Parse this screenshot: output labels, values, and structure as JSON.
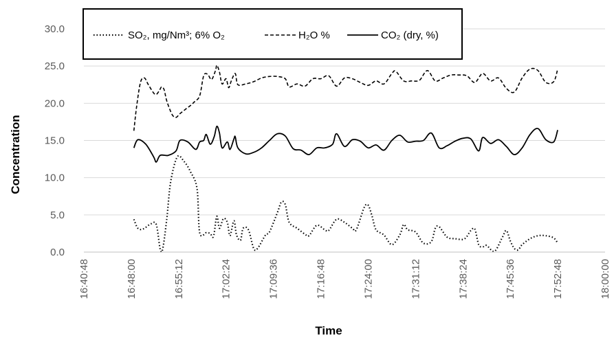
{
  "chart_data": {
    "type": "line",
    "xlabel": "Time",
    "ylabel": "Concentration",
    "ylim": [
      0,
      30
    ],
    "yticks": [
      "0.0",
      "5.0",
      "10.0",
      "15.0",
      "20.0",
      "25.0",
      "30.0"
    ],
    "xlim": [
      "16:40:48",
      "18:00:00"
    ],
    "xticks": [
      "16:40:48",
      "16:48:00",
      "16:55:12",
      "17:02:24",
      "17:09:36",
      "17:16:48",
      "17:24:00",
      "17:31:12",
      "17:38:24",
      "17:45:36",
      "17:52:48",
      "18:00:00"
    ],
    "grid": "horizontal",
    "legend_position": "top",
    "series": [
      {
        "name": "SO₂, mg/Nm³;  6% O₂",
        "style": "dotted",
        "color": "#000000",
        "points": [
          [
            "16:48:24",
            4.4
          ],
          [
            "16:49:00",
            3.2
          ],
          [
            "16:49:48",
            3.1
          ],
          [
            "16:51:00",
            3.8
          ],
          [
            "16:51:48",
            3.7
          ],
          [
            "16:52:24",
            0.4
          ],
          [
            "16:52:48",
            0.5
          ],
          [
            "16:53:24",
            4.5
          ],
          [
            "16:54:00",
            9.5
          ],
          [
            "16:55:00",
            12.8
          ],
          [
            "16:56:00",
            12.2
          ],
          [
            "16:57:00",
            10.8
          ],
          [
            "16:58:00",
            8.5
          ],
          [
            "16:58:24",
            2.6
          ],
          [
            "16:59:24",
            2.6
          ],
          [
            "17:00:00",
            2.5
          ],
          [
            "17:00:30",
            2.1
          ],
          [
            "17:01:00",
            4.8
          ],
          [
            "17:01:24",
            3.2
          ],
          [
            "17:02:00",
            4.5
          ],
          [
            "17:02:36",
            4.0
          ],
          [
            "17:03:00",
            2.2
          ],
          [
            "17:03:36",
            4.2
          ],
          [
            "17:04:00",
            2.3
          ],
          [
            "17:04:36",
            1.6
          ],
          [
            "17:05:00",
            3.2
          ],
          [
            "17:05:48",
            3.0
          ],
          [
            "17:06:36",
            0.5
          ],
          [
            "17:07:12",
            0.5
          ],
          [
            "17:08:24",
            2.3
          ],
          [
            "17:09:00",
            2.7
          ],
          [
            "17:10:12",
            5.3
          ],
          [
            "17:10:48",
            6.7
          ],
          [
            "17:11:24",
            6.4
          ],
          [
            "17:12:00",
            4.0
          ],
          [
            "17:13:12",
            3.2
          ],
          [
            "17:14:24",
            2.4
          ],
          [
            "17:15:00",
            2.2
          ],
          [
            "17:16:12",
            3.6
          ],
          [
            "17:17:24",
            3.0
          ],
          [
            "17:18:00",
            2.9
          ],
          [
            "17:19:12",
            4.4
          ],
          [
            "17:20:24",
            4.0
          ],
          [
            "17:21:36",
            3.2
          ],
          [
            "17:22:12",
            3.0
          ],
          [
            "17:23:24",
            6.0
          ],
          [
            "17:24:00",
            6.3
          ],
          [
            "17:24:36",
            4.8
          ],
          [
            "17:25:12",
            3.0
          ],
          [
            "17:26:24",
            2.3
          ],
          [
            "17:27:36",
            1.0
          ],
          [
            "17:28:48",
            2.3
          ],
          [
            "17:29:24",
            3.7
          ],
          [
            "17:30:00",
            3.0
          ],
          [
            "17:31:12",
            2.7
          ],
          [
            "17:32:24",
            1.2
          ],
          [
            "17:33:36",
            1.4
          ],
          [
            "17:34:12",
            3.2
          ],
          [
            "17:34:48",
            3.4
          ],
          [
            "17:36:00",
            2.0
          ],
          [
            "17:37:12",
            1.8
          ],
          [
            "17:38:24",
            1.7
          ],
          [
            "17:39:00",
            2.1
          ],
          [
            "17:39:36",
            2.9
          ],
          [
            "17:40:12",
            3.1
          ],
          [
            "17:40:48",
            1.0
          ],
          [
            "17:41:24",
            0.7
          ],
          [
            "17:42:00",
            0.9
          ],
          [
            "17:43:12",
            0.1
          ],
          [
            "17:44:24",
            2.0
          ],
          [
            "17:45:00",
            2.9
          ],
          [
            "17:45:36",
            1.5
          ],
          [
            "17:46:12",
            0.5
          ],
          [
            "17:46:48",
            0.3
          ],
          [
            "17:47:24",
            1.0
          ],
          [
            "17:48:36",
            1.8
          ],
          [
            "17:49:48",
            2.2
          ],
          [
            "17:51:00",
            2.2
          ],
          [
            "17:52:12",
            1.9
          ],
          [
            "17:52:48",
            1.2
          ]
        ]
      },
      {
        "name": "H₂O %",
        "style": "dashed",
        "color": "#000000",
        "points": [
          [
            "16:48:24",
            16.3
          ],
          [
            "16:48:48",
            19.5
          ],
          [
            "16:49:24",
            22.8
          ],
          [
            "16:50:00",
            23.4
          ],
          [
            "16:50:36",
            22.5
          ],
          [
            "16:51:36",
            21.2
          ],
          [
            "16:52:12",
            21.6
          ],
          [
            "16:52:36",
            22.2
          ],
          [
            "16:53:00",
            21.8
          ],
          [
            "16:53:24",
            20.3
          ],
          [
            "16:54:12",
            18.5
          ],
          [
            "16:54:48",
            18.1
          ],
          [
            "16:55:24",
            18.6
          ],
          [
            "16:56:24",
            19.3
          ],
          [
            "16:57:00",
            19.7
          ],
          [
            "16:57:36",
            20.2
          ],
          [
            "16:58:24",
            21.0
          ],
          [
            "16:59:00",
            23.7
          ],
          [
            "16:59:36",
            23.9
          ],
          [
            "17:00:12",
            23.2
          ],
          [
            "17:00:48",
            24.4
          ],
          [
            "17:01:00",
            25.1
          ],
          [
            "17:01:24",
            24.2
          ],
          [
            "17:01:48",
            22.6
          ],
          [
            "17:02:24",
            23.3
          ],
          [
            "17:02:48",
            22.1
          ],
          [
            "17:03:12",
            23.0
          ],
          [
            "17:03:48",
            24.0
          ],
          [
            "17:04:12",
            22.5
          ],
          [
            "17:05:24",
            22.6
          ],
          [
            "17:06:36",
            22.9
          ],
          [
            "17:07:48",
            23.4
          ],
          [
            "17:09:00",
            23.6
          ],
          [
            "17:10:12",
            23.6
          ],
          [
            "17:11:24",
            23.3
          ],
          [
            "17:12:00",
            22.2
          ],
          [
            "17:13:12",
            22.6
          ],
          [
            "17:14:24",
            22.3
          ],
          [
            "17:15:36",
            23.3
          ],
          [
            "17:16:48",
            23.3
          ],
          [
            "17:18:00",
            23.7
          ],
          [
            "17:19:12",
            22.3
          ],
          [
            "17:20:24",
            23.4
          ],
          [
            "17:21:36",
            23.3
          ],
          [
            "17:22:48",
            22.8
          ],
          [
            "17:24:00",
            22.4
          ],
          [
            "17:25:12",
            23.0
          ],
          [
            "17:26:24",
            22.6
          ],
          [
            "17:27:36",
            24.0
          ],
          [
            "17:28:12",
            24.3
          ],
          [
            "17:29:24",
            23.0
          ],
          [
            "17:30:36",
            23.0
          ],
          [
            "17:31:48",
            23.1
          ],
          [
            "17:33:00",
            24.4
          ],
          [
            "17:34:12",
            23.0
          ],
          [
            "17:35:24",
            23.4
          ],
          [
            "17:36:36",
            23.8
          ],
          [
            "17:37:48",
            23.8
          ],
          [
            "17:39:00",
            23.7
          ],
          [
            "17:40:12",
            22.8
          ],
          [
            "17:41:24",
            24.0
          ],
          [
            "17:42:36",
            23.0
          ],
          [
            "17:43:48",
            23.4
          ],
          [
            "17:45:00",
            22.0
          ],
          [
            "17:46:12",
            21.5
          ],
          [
            "17:47:24",
            23.4
          ],
          [
            "17:48:36",
            24.6
          ],
          [
            "17:49:48",
            24.4
          ],
          [
            "17:51:00",
            22.8
          ],
          [
            "17:52:12",
            22.9
          ],
          [
            "17:52:48",
            24.6
          ]
        ]
      },
      {
        "name": "CO₂  (dry,  %)",
        "style": "solid",
        "color": "#000000",
        "points": [
          [
            "16:48:24",
            14.0
          ],
          [
            "16:49:00",
            15.1
          ],
          [
            "16:50:12",
            14.5
          ],
          [
            "16:51:24",
            12.8
          ],
          [
            "16:51:48",
            12.1
          ],
          [
            "16:52:24",
            13.0
          ],
          [
            "16:53:36",
            13.0
          ],
          [
            "16:54:48",
            13.6
          ],
          [
            "16:55:24",
            15.0
          ],
          [
            "16:56:36",
            14.8
          ],
          [
            "16:57:48",
            13.8
          ],
          [
            "16:58:24",
            14.8
          ],
          [
            "16:59:00",
            15.0
          ],
          [
            "16:59:24",
            15.8
          ],
          [
            "17:00:00",
            14.5
          ],
          [
            "17:00:36",
            15.5
          ],
          [
            "17:01:00",
            16.9
          ],
          [
            "17:01:24",
            16.0
          ],
          [
            "17:01:48",
            14.0
          ],
          [
            "17:02:36",
            14.8
          ],
          [
            "17:03:00",
            13.8
          ],
          [
            "17:03:36",
            15.2
          ],
          [
            "17:03:48",
            15.5
          ],
          [
            "17:04:12",
            14.0
          ],
          [
            "17:05:24",
            13.2
          ],
          [
            "17:06:36",
            13.4
          ],
          [
            "17:07:48",
            14.0
          ],
          [
            "17:09:00",
            15.0
          ],
          [
            "17:10:12",
            15.9
          ],
          [
            "17:11:24",
            15.6
          ],
          [
            "17:12:36",
            13.9
          ],
          [
            "17:13:48",
            13.7
          ],
          [
            "17:15:00",
            13.1
          ],
          [
            "17:16:12",
            14.0
          ],
          [
            "17:17:24",
            14.0
          ],
          [
            "17:18:36",
            14.5
          ],
          [
            "17:19:12",
            15.9
          ],
          [
            "17:20:24",
            14.2
          ],
          [
            "17:21:36",
            15.1
          ],
          [
            "17:22:48",
            14.9
          ],
          [
            "17:24:00",
            14.0
          ],
          [
            "17:25:12",
            14.4
          ],
          [
            "17:26:24",
            13.7
          ],
          [
            "17:27:36",
            15.0
          ],
          [
            "17:28:48",
            15.7
          ],
          [
            "17:30:00",
            14.8
          ],
          [
            "17:31:12",
            14.9
          ],
          [
            "17:32:24",
            15.0
          ],
          [
            "17:33:36",
            16.0
          ],
          [
            "17:34:48",
            14.0
          ],
          [
            "17:36:00",
            14.3
          ],
          [
            "17:37:12",
            14.9
          ],
          [
            "17:38:24",
            15.3
          ],
          [
            "17:39:36",
            15.2
          ],
          [
            "17:40:48",
            13.6
          ],
          [
            "17:41:24",
            15.4
          ],
          [
            "17:42:36",
            14.6
          ],
          [
            "17:43:48",
            15.1
          ],
          [
            "17:45:00",
            14.2
          ],
          [
            "17:46:12",
            13.1
          ],
          [
            "17:47:24",
            14.0
          ],
          [
            "17:48:36",
            15.8
          ],
          [
            "17:49:48",
            16.6
          ],
          [
            "17:51:00",
            15.1
          ],
          [
            "17:52:12",
            14.8
          ],
          [
            "17:52:48",
            16.4
          ]
        ]
      }
    ]
  }
}
